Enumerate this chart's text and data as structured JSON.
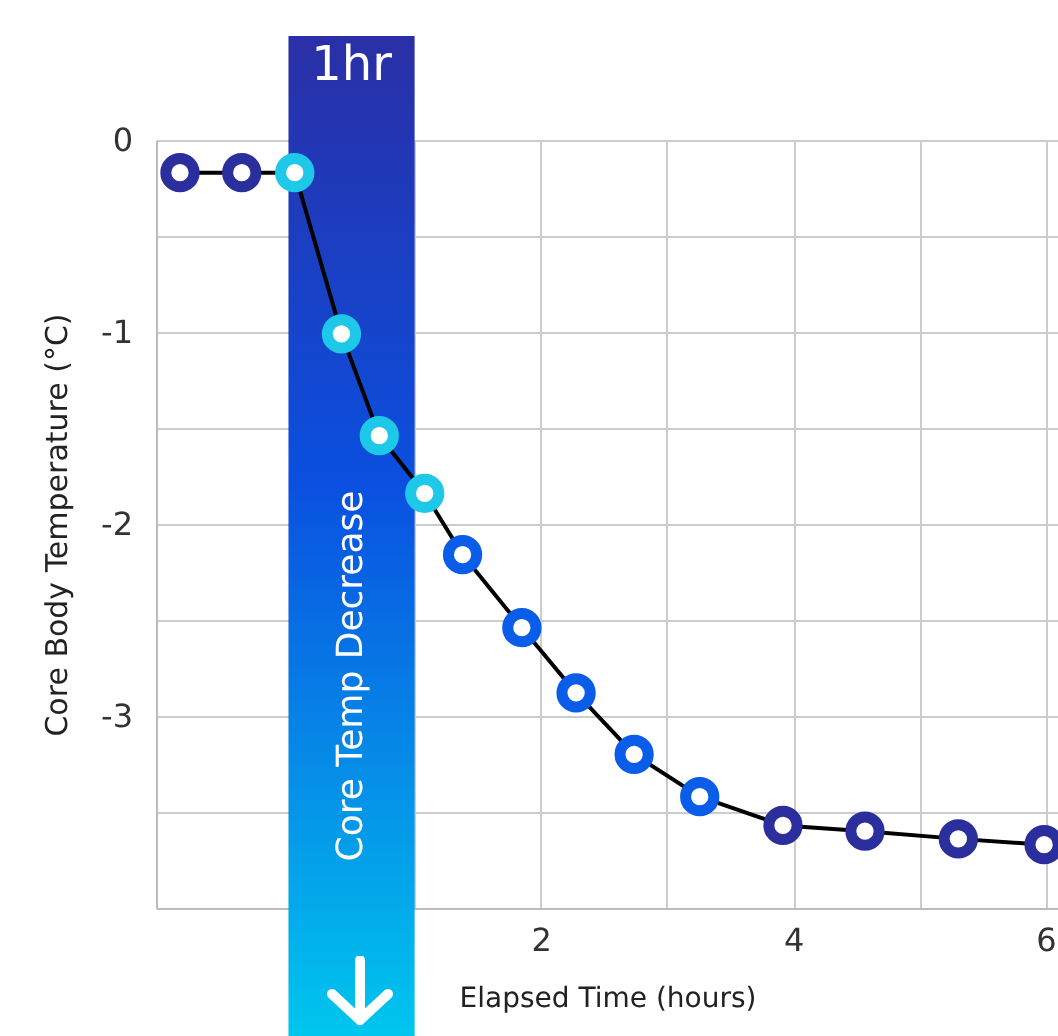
{
  "chart_data": {
    "type": "line",
    "xlabel": "Elapsed Time (hours)",
    "ylabel": "Core Body Temperature (°C)",
    "x": [
      -0.86,
      -0.37,
      0.05,
      0.42,
      0.72,
      1.08,
      1.38,
      1.85,
      2.28,
      2.74,
      3.26,
      3.92,
      4.57,
      5.31,
      5.99
    ],
    "series": [
      {
        "color": "#000000",
        "colors": [
          "#2b2f9e",
          "#2b2f9e",
          "#1ec8e8",
          "#1ec8e8",
          "#1ec8e8",
          "#1ec8e8",
          "#0a5de8",
          "#0a5de8",
          "#0a5de8",
          "#0a5de8",
          "#0a5de8",
          "#2b2f9e",
          "#2b2f9e",
          "#2b2f9e",
          "#2b2f9e"
        ],
        "values": [
          -0.17,
          -0.17,
          -0.17,
          -1.01,
          -1.54,
          -1.84,
          -2.16,
          -2.54,
          -2.88,
          -3.2,
          -3.42,
          -3.57,
          -3.6,
          -3.64,
          -3.67
        ]
      }
    ],
    "xlim": [
      -1.05,
      6.1
    ],
    "ylim": [
      -4,
      0
    ],
    "xticks": [
      {
        "value": 1,
        "label": null
      },
      2,
      {
        "value": 3,
        "label": null
      },
      4,
      {
        "value": 5,
        "label": null
      },
      6
    ],
    "yticks": [
      0,
      {
        "value": -0.5,
        "label": null
      },
      -1,
      {
        "value": -1.5,
        "label": null
      },
      -2,
      {
        "value": -2.5,
        "label": null
      },
      -3,
      {
        "value": -3.5,
        "label": null
      },
      {
        "value": -4,
        "label": null
      }
    ],
    "bands": [
      {
        "axis": "x",
        "from": 0,
        "to": 1,
        "label": "1hr",
        "color": "#2a2fa6"
      }
    ],
    "annotations": [
      "Core Temp Decrease"
    ],
    "grid": true,
    "marker": "circle",
    "line_style": "solid"
  }
}
